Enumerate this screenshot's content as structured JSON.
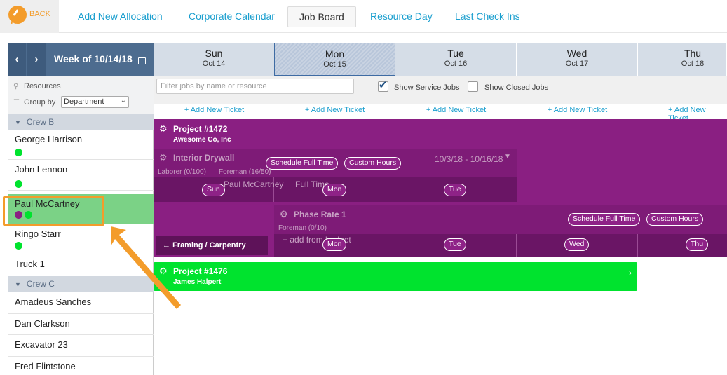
{
  "nav": {
    "back_label": "BACK",
    "items": [
      "Add New Allocation",
      "Corporate Calendar",
      "Job Board",
      "Resource Day",
      "Last Check Ins"
    ]
  },
  "sidebar": {
    "prev_icon": "chevron-left-icon",
    "next_icon": "chevron-right-icon",
    "week_label": "Week of 10/14/18",
    "resources_label": "Resources",
    "group_by_label": "Group by",
    "group_by_value": "Department",
    "groups": [
      {
        "name": "Crew B",
        "members": [
          {
            "name": "George Harrison",
            "dots": [
              "#00e32e"
            ]
          },
          {
            "name": "John Lennon",
            "dots": [
              "#00e32e"
            ]
          },
          {
            "name": "Paul McCartney",
            "dots": [
              "#8a1f82",
              "#00e32e"
            ],
            "selected": true
          },
          {
            "name": "Ringo Starr",
            "dots": [
              "#00e32e"
            ]
          },
          {
            "name": "Truck 1",
            "dots": []
          }
        ]
      },
      {
        "name": "Crew C",
        "members": [
          {
            "name": "Amadeus Sanches",
            "dots": []
          },
          {
            "name": "Dan Clarkson",
            "dots": []
          },
          {
            "name": "Excavator 23",
            "dots": []
          },
          {
            "name": "Fred Flintstone",
            "dots": []
          }
        ]
      }
    ]
  },
  "days": [
    {
      "name": "Sun",
      "date": "Oct 14"
    },
    {
      "name": "Mon",
      "date": "Oct 15"
    },
    {
      "name": "Tue",
      "date": "Oct 16"
    },
    {
      "name": "Wed",
      "date": "Oct 17"
    },
    {
      "name": "Thu",
      "date": "Oct 18"
    }
  ],
  "toolbar": {
    "filter_placeholder": "Filter jobs by name or resource",
    "show_service_jobs": "Show Service Jobs",
    "show_closed_jobs": "Show Closed Jobs",
    "add_ticket": "+ Add New Ticket"
  },
  "project1": {
    "title": "Project #1472",
    "client": "Awesome Co, Inc",
    "phase1": {
      "name": "Interior Drywall",
      "schedule_btn": "Schedule Full Time",
      "custom_btn": "Custom Hours",
      "date_range": "10/3/18 - 10/16/18",
      "roles": "Laborer (0/100)",
      "roles2": "Foreman (16/50)",
      "ghost_text": "Paul McCartney",
      "ghost_text2": "Full Time",
      "pills": [
        "Sun",
        "Mon",
        "Tue"
      ]
    },
    "phase2": {
      "name": "Phase Rate 1",
      "schedule_btn": "Schedule Full Time",
      "custom_btn": "Custom Hours",
      "roles": "Foreman (0/10)",
      "add_from_budget": "+ add from budget",
      "pills": [
        "Mon",
        "Tue",
        "Wed",
        "Thu"
      ]
    },
    "framing": "Framing / Carpentry"
  },
  "project2": {
    "title": "Project #1476",
    "client": "James Halpert"
  },
  "colors": {
    "accent": "#1b9fcf",
    "brand": "#f39c2b",
    "project_purple": "#8a1f82",
    "project_green": "#00e32e"
  }
}
